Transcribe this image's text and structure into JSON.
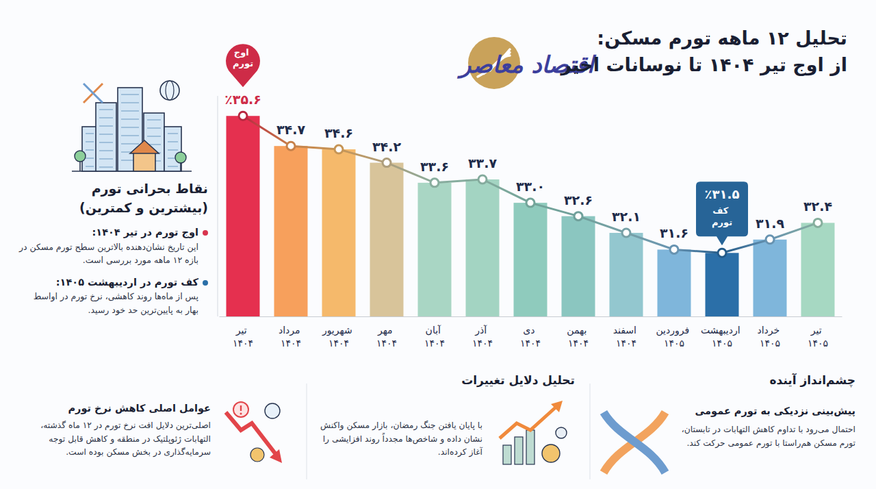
{
  "chart_data": {
    "type": "bar",
    "title": "تحلیل ۱۲ ماهه تورم مسکن:",
    "subtitle": "از اوج تیر ۱۴۰۴ تا نوسانات اخیر",
    "categories": [
      "تیر ۱۴۰۴",
      "مرداد ۱۴۰۴",
      "شهریور ۱۴۰۴",
      "مهر ۱۴۰۴",
      "آبان ۱۴۰۴",
      "آذر ۱۴۰۴",
      "دی ۱۴۰۴",
      "بهمن ۱۴۰۴",
      "اسفند ۱۴۰۴",
      "فروردین ۱۴۰۵",
      "اردیبهشت ۱۴۰۵",
      "خرداد ۱۴۰۵",
      "تیر ۱۴۰۵"
    ],
    "values": [
      35.6,
      34.7,
      34.6,
      34.2,
      33.6,
      33.7,
      33.0,
      32.6,
      32.1,
      31.6,
      31.5,
      31.9,
      32.4
    ],
    "value_labels": [
      "٪۳۵.۶",
      "۳۴.۷",
      "۳۴.۶",
      "۳۴.۲",
      "۳۳.۶",
      "۳۳.۷",
      "۳۳.۰",
      "۳۲.۶",
      "۳۲.۱",
      "۳۱.۶",
      "٪۳۱.۵",
      "۳۱.۹",
      "۳۲.۴"
    ],
    "colors": [
      "#e5304f",
      "#f7a05c",
      "#f5b96b",
      "#d8c49a",
      "#a9d6c4",
      "#a3d4c2",
      "#8fcbbd",
      "#8bc6c0",
      "#93c7cf",
      "#7fb6db",
      "#2b6fa8",
      "#7fb6db",
      "#a6d8c2"
    ],
    "ylim": [
      29.6,
      36.2
    ],
    "tick_labels": "x",
    "data_labels": true,
    "grid": false,
    "marker": "circle",
    "line_style": "solid",
    "annotations": [
      {
        "text": "اوج تورم",
        "category": "تیر ۱۴۰۴"
      },
      {
        "text": "کف تورم",
        "category": "اردیبهشت ۱۴۰۵"
      }
    ]
  },
  "logo": "اقتصاد معاصر",
  "side_panel": {
    "title": "نقاط بحرانی تورم",
    "subtitle": "(بیشترین و کمترین)",
    "items": [
      {
        "title": "اوج تورم در تیر ۱۴۰۴:",
        "text": "این تاریخ نشان‌دهنده بالاترین سطح تورم مسکن در بازه ۱۲ ماهه مورد بررسی است."
      },
      {
        "title": "کف تورم در اردیبهشت ۱۴۰۵:",
        "text": "پس از ماه‌ها روند کاهشی، نرخ تورم در اواسط بهار به پایین‌ترین حد خود رسید."
      }
    ]
  },
  "bottom_panels": [
    {
      "title": "چشم‌انداز آینده",
      "subtitle": "پیش‌بینی نزدیکی به تورم عمومی",
      "text": "احتمال می‌رود با تداوم کاهش التهابات در تابستان، تورم مسکن هم‌راستا با تورم عمومی حرکت کند."
    },
    {
      "title": "تحلیل دلایل تغییرات",
      "text": "با پایان یافتن جنگ رمضان، بازار مسکن واکنش نشان داده و شاخص‌ها مجدداً روند افزایشی را آغاز کرده‌اند."
    },
    {
      "subtitle": "عوامل اصلی کاهش نرخ تورم",
      "text": "اصلی‌ترین دلایل افت نرخ تورم در ۱۲ ماه گذشته، التهابات ژئوپلتیک در منطقه و کاهش قابل توجه سرمایه‌گذاری در بخش مسکن بوده است."
    }
  ]
}
